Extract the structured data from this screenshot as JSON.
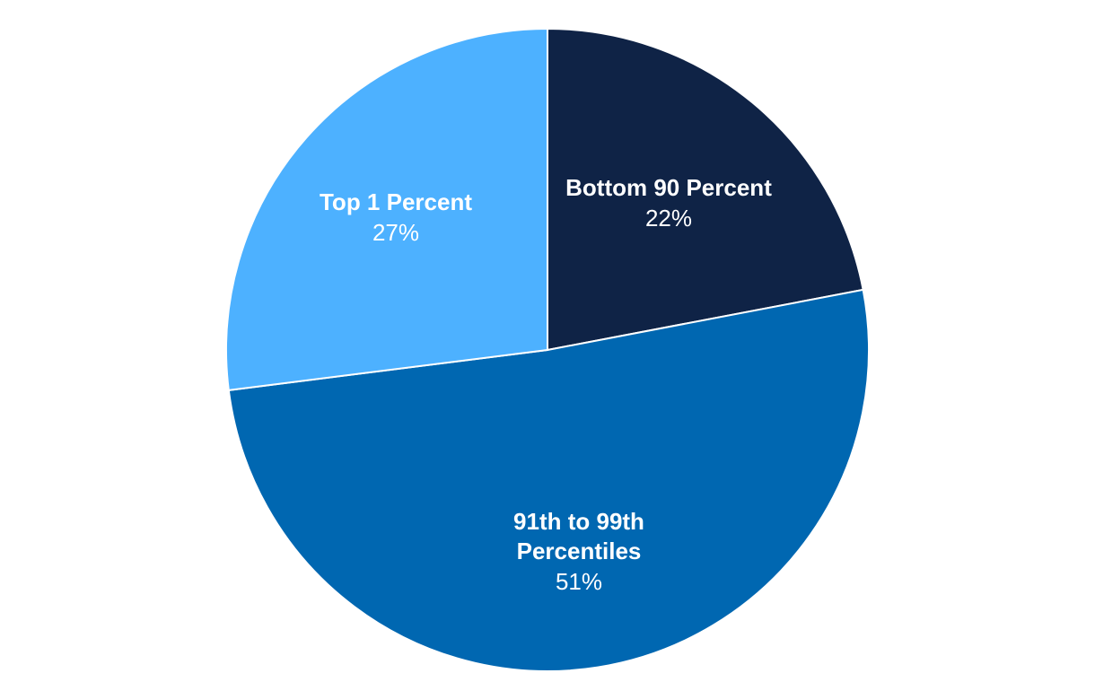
{
  "chart_data": {
    "type": "pie",
    "title": "",
    "start_angle_deg": 0,
    "direction": "clockwise",
    "slices": [
      {
        "name_lines": [
          "Bottom 90 Percent"
        ],
        "value": 22,
        "value_label": "22%",
        "color": "#0f2346"
      },
      {
        "name_lines": [
          "91th to 99th",
          "Percentiles"
        ],
        "value": 51,
        "value_label": "51%",
        "color": "#0067b1"
      },
      {
        "name_lines": [
          "Top 1 Percent"
        ],
        "value": 27,
        "value_label": "27%",
        "color": "#4db1ff"
      }
    ],
    "slice_border_color": "#ffffff",
    "label_color": "#ffffff"
  }
}
